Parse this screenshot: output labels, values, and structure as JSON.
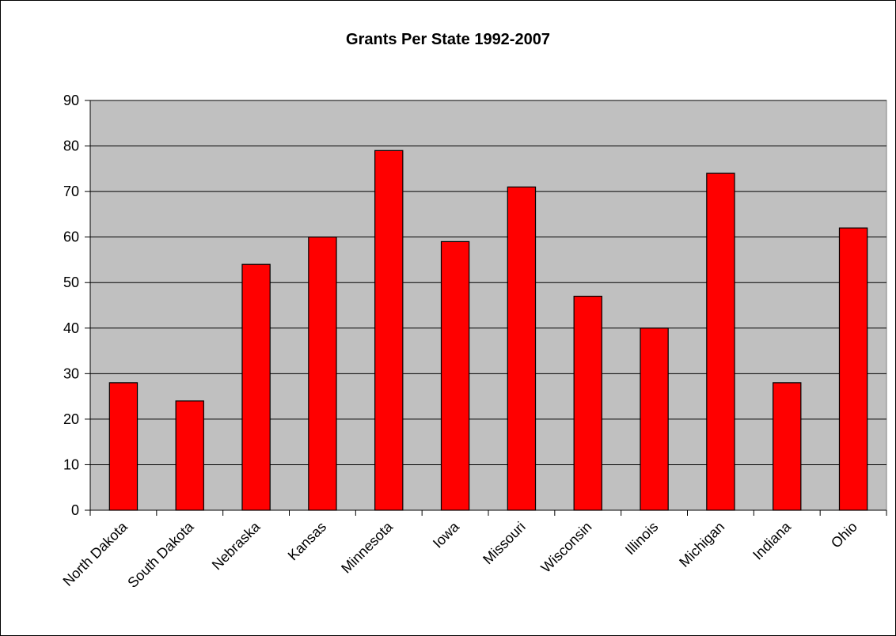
{
  "chart_data": {
    "type": "bar",
    "title": "Grants Per State 1992-2007",
    "xlabel": "",
    "ylabel": "",
    "categories": [
      "North Dakota",
      "South Dakota",
      "Nebraska",
      "Kansas",
      "Minnesota",
      "Iowa",
      "Missouri",
      "Wisconsin",
      "Illinois",
      "Michigan",
      "Indiana",
      "Ohio"
    ],
    "values": [
      28,
      24,
      54,
      60,
      79,
      59,
      71,
      47,
      40,
      74,
      28,
      62
    ],
    "ylim": [
      0,
      90
    ],
    "yticks": [
      "0",
      "10",
      "20",
      "30",
      "40",
      "50",
      "60",
      "70",
      "80",
      "90"
    ],
    "grid": true,
    "legend": "none",
    "colors": {
      "bar": "#ff0000",
      "plot_background": "#c0c0c0",
      "gridline": "#000000"
    }
  }
}
